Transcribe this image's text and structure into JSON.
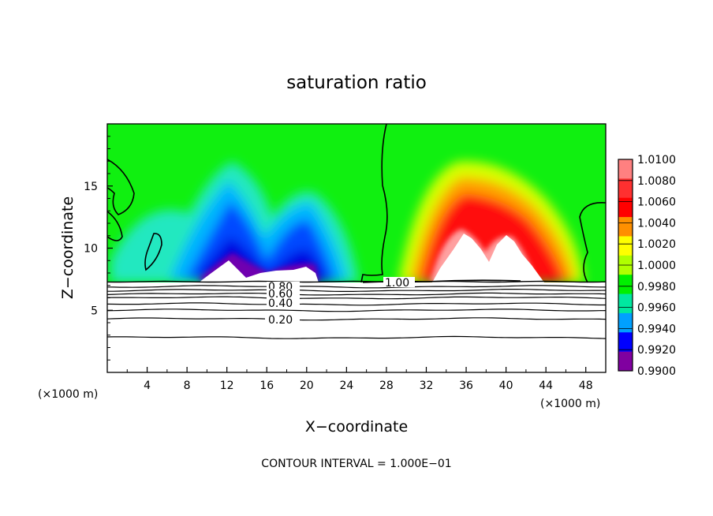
{
  "chart_data": {
    "type": "heatmap",
    "title": "saturation ratio",
    "xlabel": "X−coordinate",
    "ylabel": "Z−coordinate",
    "x_unit_left": "(×1000 m)",
    "x_unit_right": "(×1000 m)",
    "xlim": [
      0,
      50
    ],
    "ylim": [
      0,
      20
    ],
    "x_ticks": [
      "4",
      "8",
      "12",
      "16",
      "20",
      "24",
      "28",
      "32",
      "36",
      "40",
      "44",
      "48"
    ],
    "y_ticks": [
      "5",
      "10",
      "15"
    ],
    "footer": "CONTOUR INTERVAL = 1.000E−01",
    "colorbar": {
      "labels": [
        "1.0100",
        "1.0080",
        "1.0060",
        "1.0040",
        "1.0020",
        "1.0000",
        "0.9980",
        "0.9960",
        "0.9940",
        "0.9920",
        "0.9900"
      ],
      "colors": [
        "#ff8080",
        "#ff3030",
        "#ff0000",
        "#ff9000",
        "#ffff00",
        "#b0ff00",
        "#00f000",
        "#00e8a0",
        "#00a0ff",
        "#0000ff",
        "#8000a0"
      ]
    },
    "contour_labels": [
      "0.80",
      "0.60",
      "0.40",
      "0.20",
      "1.00"
    ],
    "contour_levels_below": [
      6.9,
      6.6,
      6.3,
      6.0,
      5.5,
      5.0,
      4.3,
      2.8
    ],
    "lower_boundary_z": 7.3
  }
}
